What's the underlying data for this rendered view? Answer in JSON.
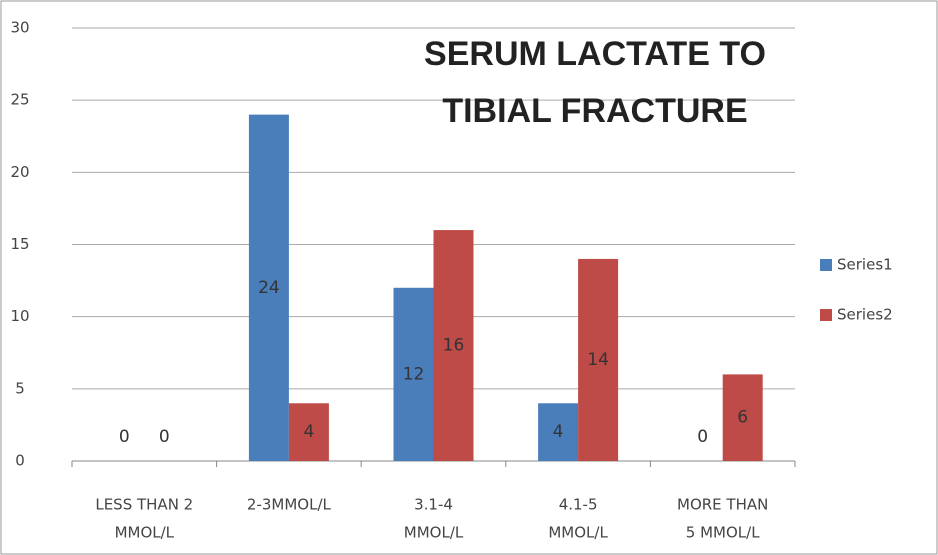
{
  "chart_data": {
    "type": "bar",
    "title": [
      "SERUM LACTATE TO",
      "TIBIAL FRACTURE"
    ],
    "categories": [
      [
        "LESS THAN 2",
        "MMOL/L"
      ],
      [
        "2-3MMOL/L"
      ],
      [
        "3.1-4",
        "MMOL/L"
      ],
      [
        "4.1-5",
        "MMOL/L"
      ],
      [
        "MORE THAN",
        "5 MMOL/L"
      ]
    ],
    "series": [
      {
        "name": "Series1",
        "color": "#4a7ebb",
        "values": [
          0,
          24,
          12,
          4,
          0
        ]
      },
      {
        "name": "Series2",
        "color": "#be4b48",
        "values": [
          0,
          4,
          16,
          14,
          6
        ]
      }
    ],
    "ylim": [
      0,
      30
    ],
    "yticks": [
      0,
      5,
      10,
      15,
      20,
      25,
      30
    ],
    "grid": true,
    "legend": "right",
    "data_labels": true
  }
}
